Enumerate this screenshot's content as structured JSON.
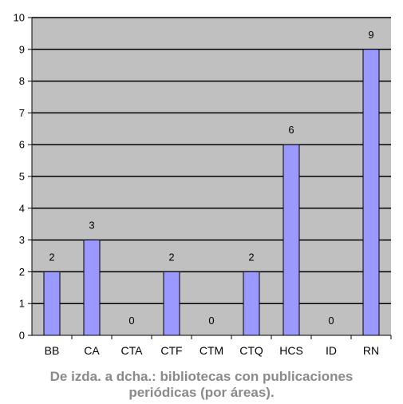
{
  "caption": {
    "line1": "De izda. a dcha.: bibliotecas con publicaciones",
    "line2": "periódicas (por áreas)."
  },
  "colors": {
    "plot_background": "#c0c0c0",
    "bar_fill": "#9999ff",
    "bar_stroke": "#000000",
    "grid": "#000000"
  },
  "chart_data": {
    "type": "bar",
    "categories": [
      "BB",
      "CA",
      "CTA",
      "CTF",
      "CTM",
      "CTQ",
      "HCS",
      "ID",
      "RN"
    ],
    "values": [
      2,
      3,
      0,
      2,
      0,
      2,
      6,
      0,
      9
    ],
    "title": "",
    "xlabel": "",
    "ylabel": "",
    "ylim": [
      0,
      10
    ],
    "yticks": [
      0,
      1,
      2,
      3,
      4,
      5,
      6,
      7,
      8,
      9,
      10
    ],
    "grid": true,
    "data_labels": true,
    "legend": "none"
  }
}
